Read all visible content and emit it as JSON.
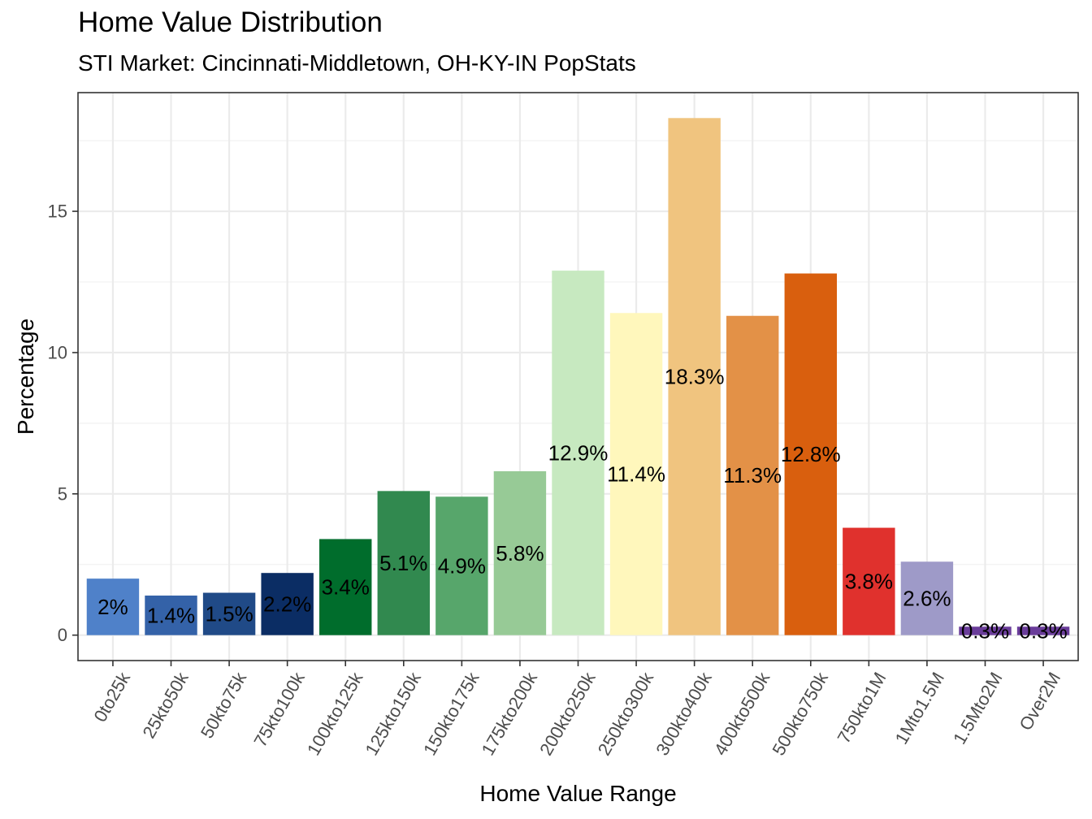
{
  "title": "Home Value Distribution",
  "subtitle": "STI Market: Cincinnati-Middletown, OH-KY-IN PopStats",
  "chart_data": {
    "type": "bar",
    "title": "Home Value Distribution",
    "subtitle": "STI Market: Cincinnati-Middletown, OH-KY-IN PopStats",
    "xlabel": "Home Value Range",
    "ylabel": "Percentage",
    "categories": [
      "0to25k",
      "25kto50k",
      "50kto75k",
      "75kto100k",
      "100kto125k",
      "125kto150k",
      "150kto175k",
      "175kto200k",
      "200kto250k",
      "250kto300k",
      "300kto400k",
      "400kto500k",
      "500kto750k",
      "750kto1M",
      "1Mto1.5M",
      "1.5Mto2M",
      "Over2M"
    ],
    "values": [
      2.0,
      1.4,
      1.5,
      2.2,
      3.4,
      5.1,
      4.9,
      5.8,
      12.9,
      11.4,
      18.3,
      11.3,
      12.8,
      3.8,
      2.6,
      0.3,
      0.3
    ],
    "data_labels": [
      "2%",
      "1.4%",
      "1.5%",
      "2.2%",
      "3.4%",
      "5.1%",
      "4.9%",
      "5.8%",
      "12.9%",
      "11.4%",
      "18.3%",
      "11.3%",
      "12.8%",
      "3.8%",
      "2.6%",
      "0.3%",
      "0.3%"
    ],
    "colors": [
      "#4f81c9",
      "#3462a8",
      "#204a87",
      "#0b2d64",
      "#006d2c",
      "#31894f",
      "#57a66b",
      "#97ca96",
      "#c7e9c0",
      "#fff7bc",
      "#f0c47f",
      "#e39147",
      "#d95f0e",
      "#e0312d",
      "#9e9ac8",
      "#6a3d9a",
      "#6a3d9a"
    ],
    "ylim": [
      -0.9,
      19.2
    ],
    "yticks": [
      0,
      5,
      10,
      15
    ],
    "grid": true,
    "legend": "none"
  }
}
